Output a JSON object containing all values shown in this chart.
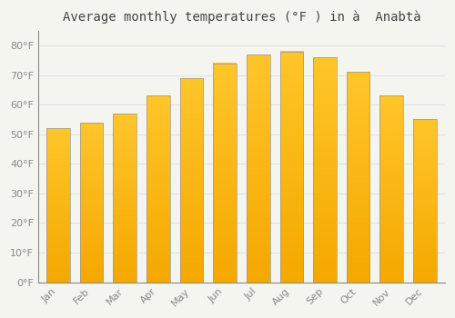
{
  "title": "Average monthly temperatures (°F ) in à  Anabtà",
  "months": [
    "Jan",
    "Feb",
    "Mar",
    "Apr",
    "May",
    "Jun",
    "Jul",
    "Aug",
    "Sep",
    "Oct",
    "Nov",
    "Dec"
  ],
  "values": [
    52,
    54,
    57,
    63,
    69,
    74,
    77,
    78,
    76,
    71,
    63,
    55
  ],
  "bar_color_light": "#FFC62A",
  "bar_color_dark": "#F5A800",
  "bar_edge_color": "#999999",
  "background_color": "#F5F5F0",
  "plot_bg_color": "#F5F5F0",
  "grid_color": "#E0E0E0",
  "yticks": [
    0,
    10,
    20,
    30,
    40,
    50,
    60,
    70,
    80
  ],
  "ylim": [
    0,
    85
  ],
  "title_fontsize": 10,
  "tick_fontsize": 8,
  "title_color": "#444444",
  "tick_color": "#888888",
  "bar_width": 0.7
}
